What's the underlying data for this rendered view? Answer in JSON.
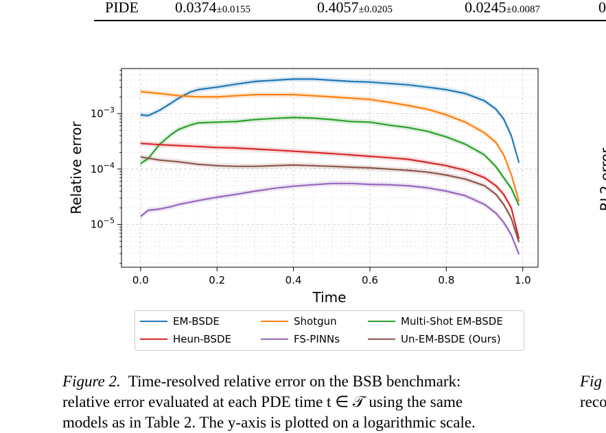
{
  "table_row": {
    "method": "PIDE",
    "cells": [
      {
        "value": "0.0374",
        "pm": "±0.0155"
      },
      {
        "value": "0.4057",
        "pm": "±0.0205"
      },
      {
        "value": "0.0245",
        "pm": "±0.0087"
      },
      {
        "value": "0",
        "pm": ""
      }
    ]
  },
  "chart_data": {
    "type": "line",
    "xlabel": "Time",
    "ylabel": "Relative error",
    "yscale": "log",
    "xlim": [
      -0.05,
      1.04
    ],
    "ylim": [
      1.7e-06,
      0.0065
    ],
    "grid": true,
    "legend_position": "below",
    "x_ticks": [
      0.0,
      0.2,
      0.4,
      0.6,
      0.8,
      1.0
    ],
    "x_tick_labels": [
      "0.0",
      "0.2",
      "0.4",
      "0.6",
      "0.8",
      "1.0"
    ],
    "y_ticks": [
      1e-05,
      0.0001,
      0.001
    ],
    "y_tick_labels": [
      {
        "base": "10",
        "exp": "−5"
      },
      {
        "base": "10",
        "exp": "−4"
      },
      {
        "base": "10",
        "exp": "−3"
      }
    ],
    "series": [
      {
        "name": "EM-BSDE",
        "color": "#1f77b4",
        "x": [
          0.0,
          0.02,
          0.05,
          0.08,
          0.1,
          0.13,
          0.15,
          0.2,
          0.25,
          0.3,
          0.35,
          0.4,
          0.45,
          0.5,
          0.55,
          0.6,
          0.65,
          0.7,
          0.75,
          0.8,
          0.85,
          0.9,
          0.93,
          0.95,
          0.97,
          0.99
        ],
        "values": [
          0.00095,
          0.00092,
          0.00115,
          0.00155,
          0.0019,
          0.00245,
          0.0027,
          0.003,
          0.0034,
          0.0038,
          0.004,
          0.0042,
          0.0042,
          0.004,
          0.0038,
          0.0037,
          0.0035,
          0.0033,
          0.003,
          0.0027,
          0.0023,
          0.0017,
          0.0012,
          0.0008,
          0.0004,
          0.00013
        ]
      },
      {
        "name": "Shotgun",
        "color": "#ff7f0e",
        "x": [
          0.0,
          0.05,
          0.1,
          0.15,
          0.2,
          0.25,
          0.3,
          0.35,
          0.4,
          0.45,
          0.5,
          0.55,
          0.6,
          0.65,
          0.7,
          0.75,
          0.8,
          0.85,
          0.9,
          0.93,
          0.95,
          0.97,
          0.99
        ],
        "values": [
          0.0025,
          0.0023,
          0.0021,
          0.002,
          0.002,
          0.0021,
          0.0022,
          0.0022,
          0.0022,
          0.0021,
          0.002,
          0.0019,
          0.0018,
          0.0016,
          0.0014,
          0.0012,
          0.00095,
          0.0007,
          0.00045,
          0.0003,
          0.00018,
          8e-05,
          2.6e-05
        ]
      },
      {
        "name": "Multi-Shot EM-BSDE",
        "color": "#2ca02c",
        "x": [
          0.0,
          0.02,
          0.05,
          0.08,
          0.1,
          0.13,
          0.15,
          0.2,
          0.25,
          0.3,
          0.35,
          0.4,
          0.45,
          0.5,
          0.55,
          0.6,
          0.65,
          0.7,
          0.75,
          0.8,
          0.85,
          0.9,
          0.93,
          0.95,
          0.97,
          0.99
        ],
        "values": [
          0.000125,
          0.000155,
          0.00028,
          0.00042,
          0.00052,
          0.00062,
          0.00068,
          0.0007,
          0.00072,
          0.00078,
          0.00082,
          0.00085,
          0.00083,
          0.00078,
          0.00072,
          0.0007,
          0.00062,
          0.00056,
          0.00048,
          0.00038,
          0.00028,
          0.00018,
          0.00011,
          7e-05,
          4.5e-05,
          2.2e-05
        ]
      },
      {
        "name": "Heun-BSDE",
        "color": "#d62728",
        "x": [
          0.0,
          0.05,
          0.1,
          0.15,
          0.2,
          0.25,
          0.3,
          0.35,
          0.4,
          0.45,
          0.5,
          0.55,
          0.6,
          0.65,
          0.7,
          0.75,
          0.8,
          0.85,
          0.9,
          0.93,
          0.95,
          0.97,
          0.99
        ],
        "values": [
          0.00029,
          0.000275,
          0.000265,
          0.000255,
          0.000245,
          0.00024,
          0.00023,
          0.00022,
          0.00021,
          0.0002,
          0.00019,
          0.00018,
          0.00017,
          0.00016,
          0.00015,
          0.000132,
          0.000115,
          9.5e-05,
          7e-05,
          5e-05,
          3.5e-05,
          2e-05,
          5.5e-06
        ]
      },
      {
        "name": "FS-PINNs",
        "color": "#9467bd",
        "x": [
          0.0,
          0.02,
          0.05,
          0.08,
          0.1,
          0.15,
          0.2,
          0.25,
          0.3,
          0.35,
          0.4,
          0.45,
          0.5,
          0.55,
          0.6,
          0.65,
          0.7,
          0.75,
          0.8,
          0.85,
          0.9,
          0.93,
          0.95,
          0.97,
          0.99
        ],
        "values": [
          1.4e-05,
          1.8e-05,
          1.9e-05,
          2.1e-05,
          2.3e-05,
          2.7e-05,
          3.1e-05,
          3.5e-05,
          4e-05,
          4.5e-05,
          4.9e-05,
          5.2e-05,
          5.5e-05,
          5.5e-05,
          5.3e-05,
          5.2e-05,
          5e-05,
          4.6e-05,
          4e-05,
          3.3e-05,
          2.3e-05,
          1.6e-05,
          1.1e-05,
          6.5e-06,
          2.9e-06
        ]
      },
      {
        "name": "Un-EM-BSDE (Ours)",
        "color": "#8c564b",
        "x": [
          0.0,
          0.05,
          0.1,
          0.15,
          0.2,
          0.25,
          0.3,
          0.35,
          0.4,
          0.45,
          0.5,
          0.55,
          0.6,
          0.65,
          0.7,
          0.75,
          0.8,
          0.85,
          0.9,
          0.93,
          0.95,
          0.97,
          0.99
        ],
        "values": [
          0.000165,
          0.000145,
          0.000135,
          0.000122,
          0.000115,
          0.000112,
          0.000112,
          0.000115,
          0.000118,
          0.000115,
          0.000112,
          0.000108,
          0.000105,
          0.0001,
          9.5e-05,
          8.8e-05,
          7.8e-05,
          6.6e-05,
          5e-05,
          3.5e-05,
          2.3e-05,
          1.3e-05,
          4.8e-06
        ]
      }
    ]
  },
  "caption": {
    "lead": "Figure 2.",
    "line1": "Time-resolved relative error on the BSB benchmark:",
    "line2": "relative error evaluated at each PDE time t ∈ 𝒯 using the same",
    "line3": "models as in Table 2. The y-axis is plotted on a logarithmic scale."
  },
  "right_fig": {
    "ylabel": "RL2 error",
    "lead": "Fig",
    "line2": "reco"
  }
}
